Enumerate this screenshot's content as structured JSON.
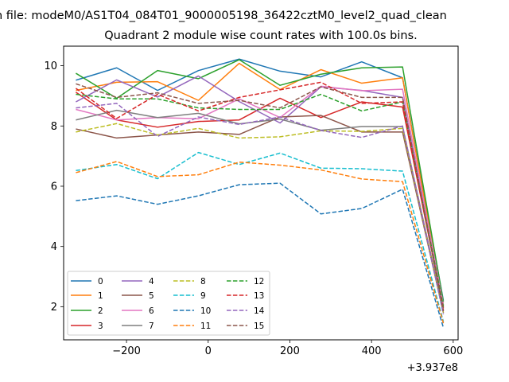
{
  "chart_data": {
    "type": "line",
    "suptitle": "n file: modeM0/AS1T04_084T01_9000005198_36422cztM0_level2_quad_clean",
    "title": "Quadrant 2 module wise count rates with 100.0s bins.",
    "xlabel": "",
    "ylabel": "",
    "x_offset_label": "+3.937e8",
    "xlim": [
      -354,
      612
    ],
    "ylim": [
      0.9,
      10.65
    ],
    "xticks": [
      -200,
      0,
      200,
      400,
      600
    ],
    "xtick_labels": [
      "−200",
      "0",
      "200",
      "400",
      "600"
    ],
    "yticks": [
      2,
      4,
      6,
      8,
      10
    ],
    "ytick_labels": [
      "2",
      "4",
      "6",
      "8",
      "10"
    ],
    "grid": false,
    "legend_position": "lower-left",
    "x": [
      -324,
      -224,
      -124,
      -24,
      76,
      176,
      276,
      376,
      476,
      576
    ],
    "series": [
      {
        "name": "0",
        "color": "#1f77b4",
        "style": "solid",
        "values": [
          9.52,
          9.93,
          9.18,
          9.84,
          10.22,
          9.82,
          9.63,
          10.13,
          9.6,
          2.2
        ]
      },
      {
        "name": "1",
        "color": "#ff7f0e",
        "style": "solid",
        "values": [
          9.18,
          9.45,
          9.47,
          8.85,
          10.08,
          9.21,
          9.87,
          9.42,
          9.6,
          2.05
        ]
      },
      {
        "name": "2",
        "color": "#2ca02c",
        "style": "solid",
        "values": [
          9.75,
          8.92,
          9.84,
          9.57,
          10.2,
          9.35,
          9.72,
          9.93,
          9.96,
          2.15
        ]
      },
      {
        "name": "3",
        "color": "#d62728",
        "style": "solid",
        "values": [
          9.12,
          8.2,
          7.96,
          8.15,
          8.2,
          8.92,
          8.28,
          8.8,
          8.63,
          1.95
        ]
      },
      {
        "name": "4",
        "color": "#9467bd",
        "style": "solid",
        "values": [
          8.8,
          9.53,
          8.96,
          9.66,
          8.81,
          8.1,
          9.3,
          9.18,
          8.95,
          2.0
        ]
      },
      {
        "name": "5",
        "color": "#8c564b",
        "style": "solid",
        "values": [
          7.9,
          7.6,
          7.7,
          7.8,
          7.72,
          8.3,
          8.35,
          7.8,
          7.8,
          1.8
        ]
      },
      {
        "name": "6",
        "color": "#e377c2",
        "style": "solid",
        "values": [
          8.55,
          8.2,
          8.28,
          8.24,
          8.9,
          8.28,
          9.32,
          9.17,
          9.22,
          2.05
        ]
      },
      {
        "name": "7",
        "color": "#7f7f7f",
        "style": "solid",
        "values": [
          8.2,
          8.52,
          8.28,
          8.42,
          8.07,
          8.23,
          7.86,
          7.98,
          7.98,
          1.85
        ]
      },
      {
        "name": "8",
        "color": "#bcbd22",
        "style": "dashed",
        "values": [
          7.8,
          8.08,
          7.7,
          7.92,
          7.6,
          7.64,
          7.84,
          7.82,
          7.92,
          1.8
        ]
      },
      {
        "name": "9",
        "color": "#17becf",
        "style": "dashed",
        "values": [
          6.52,
          6.72,
          6.25,
          7.12,
          6.72,
          7.1,
          6.6,
          6.58,
          6.5,
          1.5
        ]
      },
      {
        "name": "10",
        "color": "#1f77b4",
        "style": "dashed",
        "values": [
          5.52,
          5.68,
          5.4,
          5.68,
          6.05,
          6.1,
          5.08,
          5.26,
          5.9,
          1.3
        ]
      },
      {
        "name": "11",
        "color": "#ff7f0e",
        "style": "dashed",
        "values": [
          6.45,
          6.82,
          6.32,
          6.38,
          6.8,
          6.7,
          6.54,
          6.24,
          6.15,
          1.45
        ]
      },
      {
        "name": "12",
        "color": "#2ca02c",
        "style": "dashed",
        "values": [
          9.05,
          8.9,
          8.9,
          8.6,
          8.55,
          8.55,
          9.05,
          8.5,
          8.8,
          2.0
        ]
      },
      {
        "name": "13",
        "color": "#d62728",
        "style": "dashed",
        "values": [
          9.25,
          8.25,
          9.05,
          8.5,
          8.95,
          9.2,
          9.45,
          8.75,
          8.8,
          1.9
        ]
      },
      {
        "name": "14",
        "color": "#9467bd",
        "style": "dashed",
        "values": [
          8.6,
          8.75,
          7.65,
          8.3,
          8.05,
          8.3,
          7.85,
          7.62,
          8.0,
          1.75
        ]
      },
      {
        "name": "15",
        "color": "#8c564b",
        "style": "dashed",
        "values": [
          9.4,
          8.95,
          9.1,
          8.75,
          8.85,
          8.6,
          9.3,
          8.95,
          8.95,
          1.85
        ]
      }
    ]
  }
}
